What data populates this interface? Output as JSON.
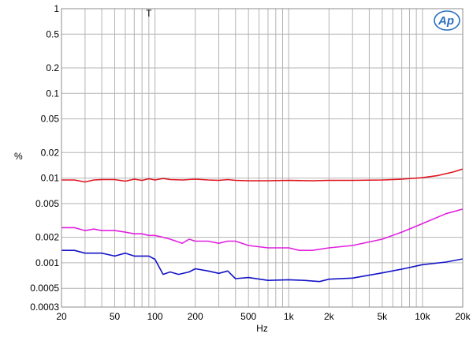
{
  "chart_data": {
    "type": "line",
    "title": "",
    "xlabel": "Hz",
    "ylabel": "%",
    "xscale": "log",
    "yscale": "log",
    "xlim": [
      20,
      20000
    ],
    "ylim": [
      0.0003,
      1
    ],
    "grid": true,
    "x_ticks": [
      {
        "value": 20,
        "label": "20"
      },
      {
        "value": 50,
        "label": "50"
      },
      {
        "value": 100,
        "label": "100"
      },
      {
        "value": 200,
        "label": "200"
      },
      {
        "value": 500,
        "label": "500"
      },
      {
        "value": 1000,
        "label": "1k"
      },
      {
        "value": 2000,
        "label": "2k"
      },
      {
        "value": 5000,
        "label": "5k"
      },
      {
        "value": 10000,
        "label": "10k"
      },
      {
        "value": 20000,
        "label": "20k"
      }
    ],
    "y_ticks": [
      {
        "value": 1,
        "label": "1"
      },
      {
        "value": 0.5,
        "label": "0.5"
      },
      {
        "value": 0.2,
        "label": "0.2"
      },
      {
        "value": 0.1,
        "label": "0.1"
      },
      {
        "value": 0.05,
        "label": "0.05"
      },
      {
        "value": 0.02,
        "label": "0.02"
      },
      {
        "value": 0.01,
        "label": "0.01"
      },
      {
        "value": 0.005,
        "label": "0.005"
      },
      {
        "value": 0.002,
        "label": "0.002"
      },
      {
        "value": 0.001,
        "label": "0.001"
      },
      {
        "value": 0.0005,
        "label": "0.0005"
      },
      {
        "value": 0.0003,
        "label": "0.0003"
      }
    ],
    "annotations": [
      {
        "text": "T",
        "x": 90,
        "y": 0.88
      }
    ],
    "logo": "Ap",
    "series": [
      {
        "color": "#e0141e",
        "x": [
          20,
          25,
          30,
          35,
          40,
          50,
          60,
          70,
          80,
          90,
          100,
          115,
          130,
          160,
          200,
          250,
          300,
          350,
          400,
          500,
          700,
          1000,
          1500,
          2000,
          3000,
          5000,
          7000,
          10000,
          13000,
          17000,
          20000
        ],
        "y": [
          0.0095,
          0.0095,
          0.009,
          0.0095,
          0.0096,
          0.0096,
          0.0092,
          0.0097,
          0.0094,
          0.0098,
          0.0095,
          0.0099,
          0.0096,
          0.0095,
          0.0097,
          0.0095,
          0.0094,
          0.0096,
          0.0094,
          0.0093,
          0.0093,
          0.0094,
          0.0093,
          0.0094,
          0.0094,
          0.0095,
          0.0097,
          0.0101,
          0.0107,
          0.0118,
          0.0128
        ]
      },
      {
        "color": "#e020e0",
        "x": [
          20,
          25,
          30,
          35,
          40,
          50,
          60,
          70,
          80,
          90,
          100,
          115,
          130,
          160,
          180,
          200,
          250,
          300,
          350,
          400,
          500,
          700,
          800,
          1000,
          1200,
          1500,
          2000,
          3000,
          5000,
          7000,
          10000,
          15000,
          20000
        ],
        "y": [
          0.0026,
          0.0026,
          0.0024,
          0.0025,
          0.0024,
          0.0024,
          0.0023,
          0.0022,
          0.0022,
          0.0021,
          0.0021,
          0.002,
          0.0019,
          0.0017,
          0.0019,
          0.0018,
          0.0018,
          0.0017,
          0.0018,
          0.0018,
          0.0016,
          0.0015,
          0.0015,
          0.0015,
          0.0014,
          0.0014,
          0.0015,
          0.0016,
          0.0019,
          0.0023,
          0.0029,
          0.0038,
          0.0043
        ]
      },
      {
        "color": "#1414c8",
        "x": [
          20,
          25,
          30,
          35,
          40,
          50,
          60,
          70,
          80,
          90,
          100,
          115,
          130,
          150,
          180,
          200,
          250,
          300,
          350,
          400,
          500,
          700,
          1000,
          1300,
          1700,
          2000,
          3000,
          5000,
          7000,
          10000,
          15000,
          20000
        ],
        "y": [
          0.0014,
          0.0014,
          0.0013,
          0.0013,
          0.0013,
          0.0012,
          0.0013,
          0.0012,
          0.0012,
          0.0012,
          0.0011,
          0.00073,
          0.00078,
          0.00073,
          0.00078,
          0.00085,
          0.0008,
          0.00075,
          0.0008,
          0.00065,
          0.00067,
          0.00062,
          0.00063,
          0.00062,
          0.0006,
          0.00064,
          0.00066,
          0.00076,
          0.00084,
          0.00095,
          0.00102,
          0.00111
        ]
      }
    ]
  }
}
